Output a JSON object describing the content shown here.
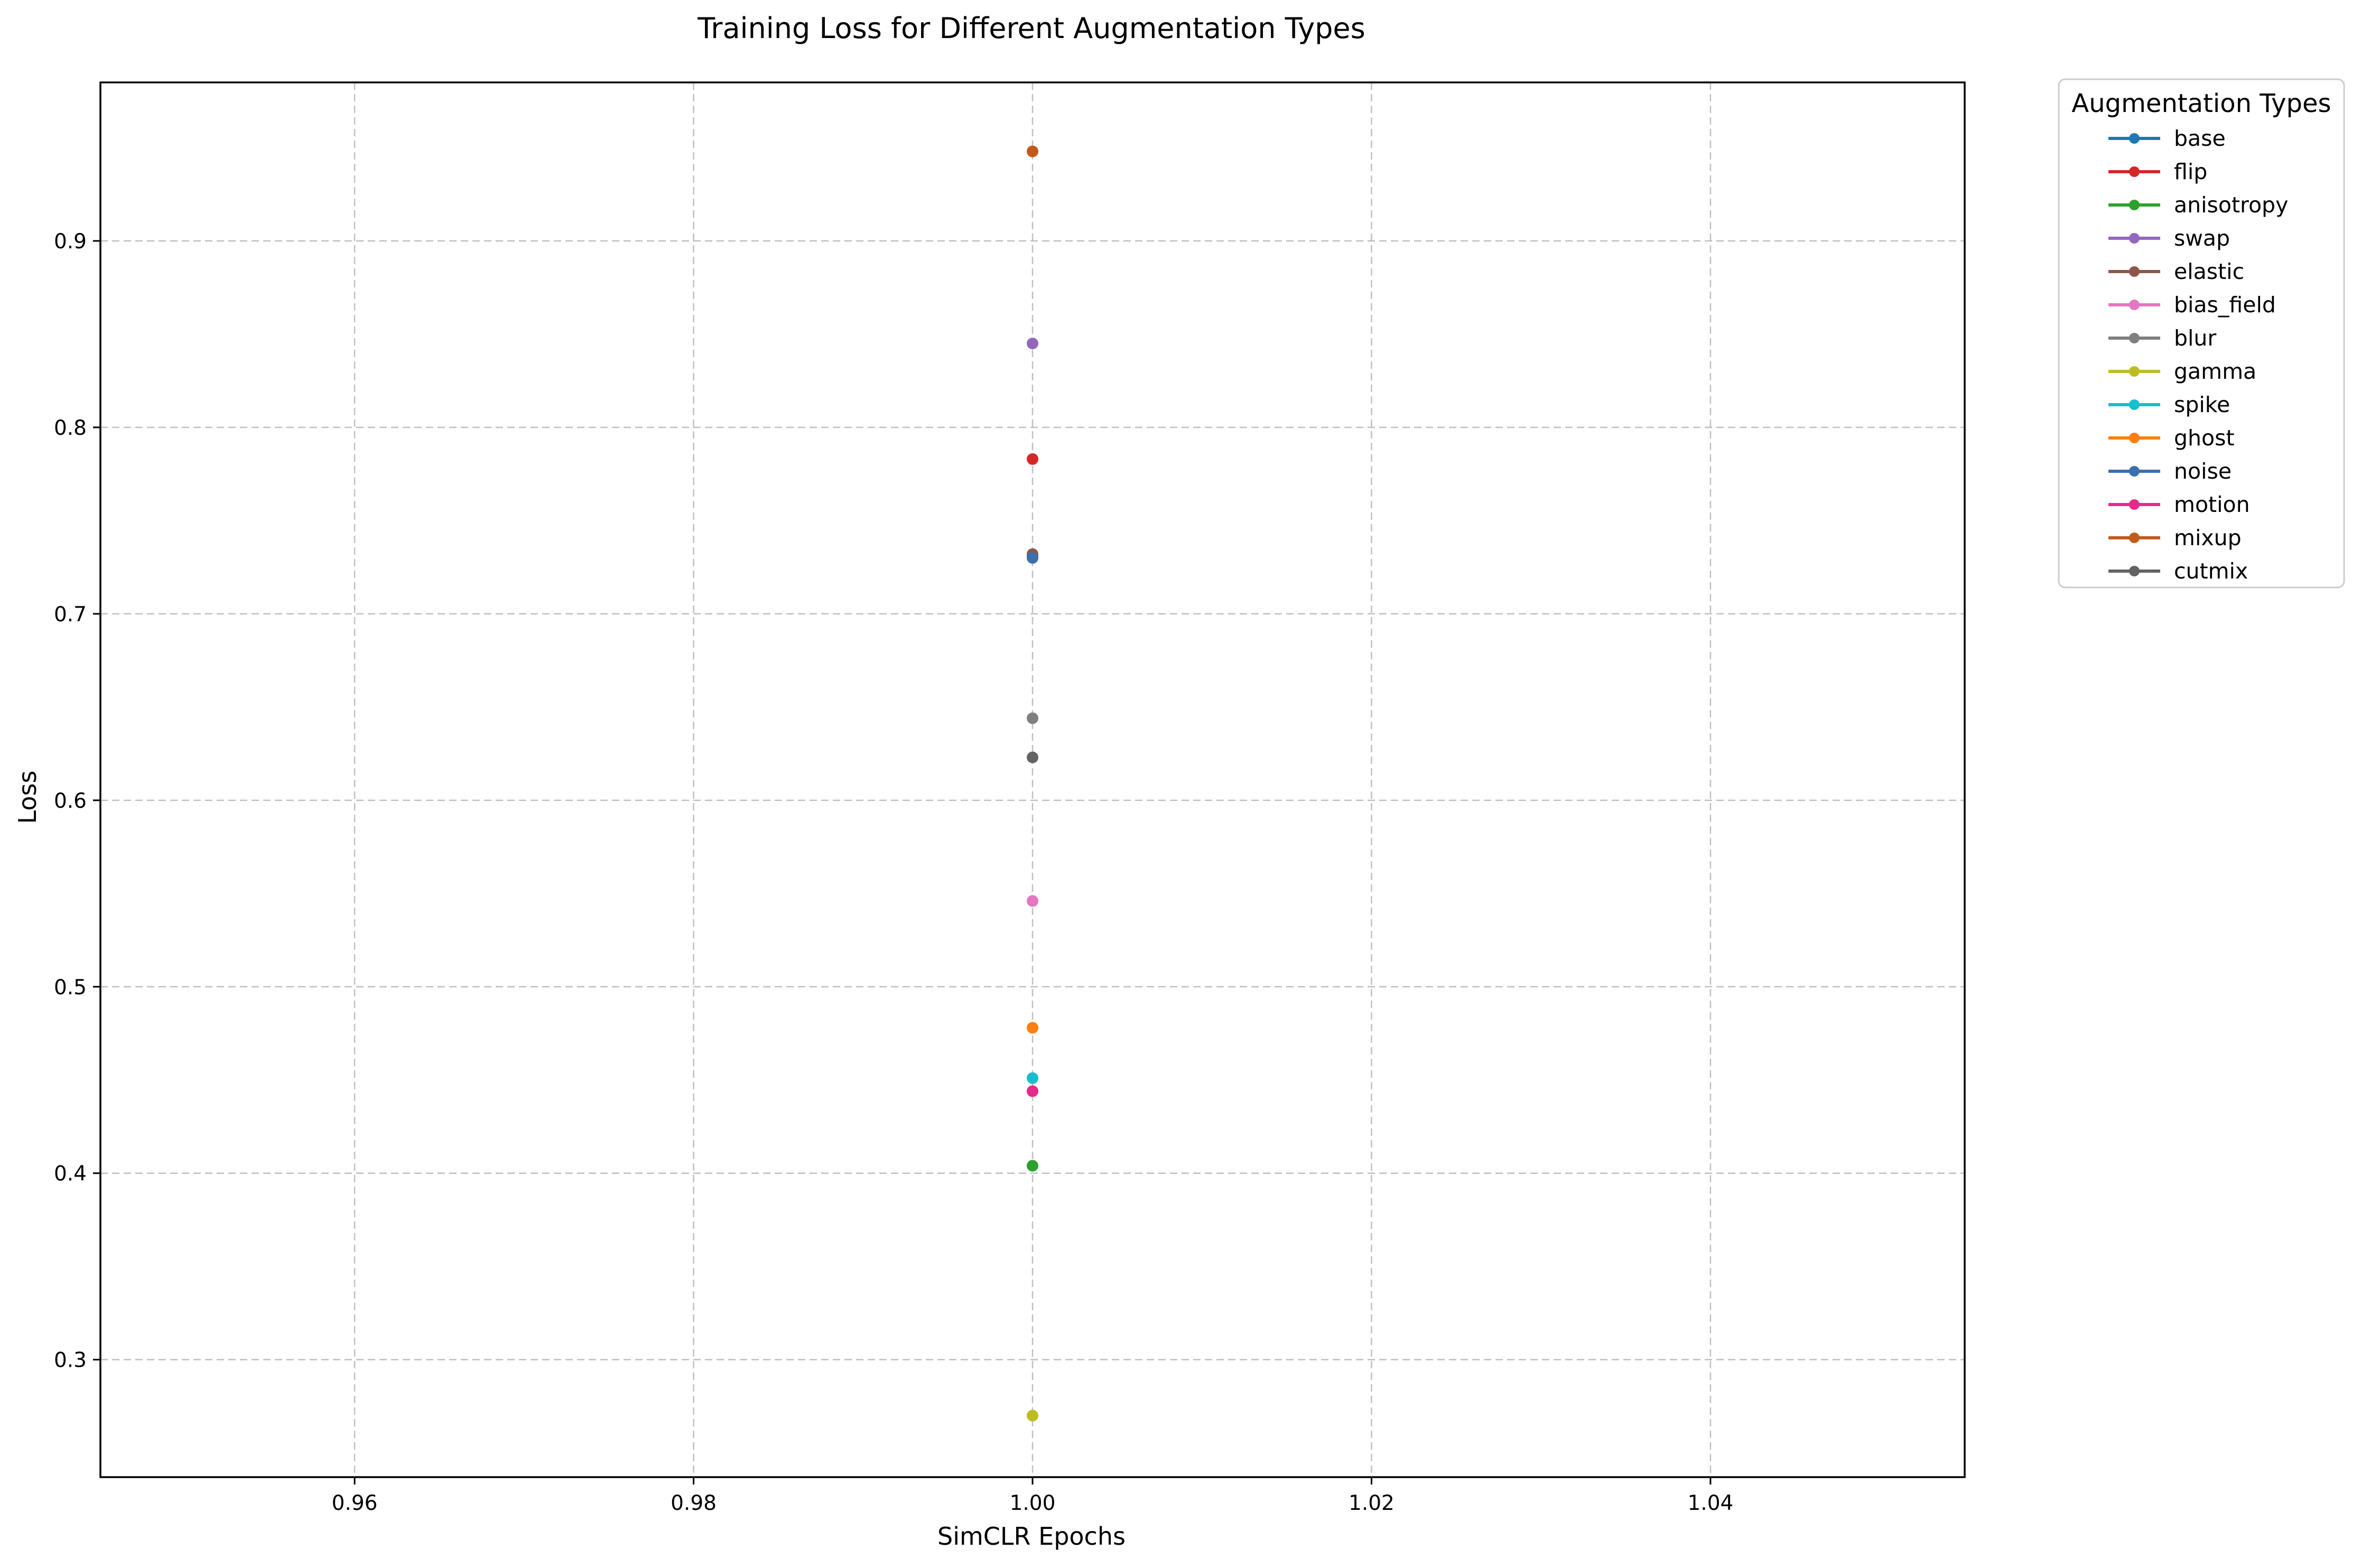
{
  "chart_data": {
    "type": "line",
    "title": "Training Loss for Different Augmentation Types",
    "xlabel": "SimCLR Epochs",
    "ylabel": "Loss",
    "xlim": [
      0.945,
      1.055
    ],
    "ylim": [
      0.237,
      0.985
    ],
    "x_ticks": [
      0.96,
      0.98,
      1.0,
      1.02,
      1.04
    ],
    "x_tick_labels": [
      "0.96",
      "0.98",
      "1.00",
      "1.02",
      "1.04"
    ],
    "y_ticks": [
      0.3,
      0.4,
      0.5,
      0.6,
      0.7,
      0.8,
      0.9
    ],
    "y_tick_labels": [
      "0.3",
      "0.4",
      "0.5",
      "0.6",
      "0.7",
      "0.8",
      "0.9"
    ],
    "grid": true,
    "legend": {
      "title": "Augmentation Types",
      "placement": "outside-right"
    },
    "series": [
      {
        "name": "base",
        "color": "#1f77b4",
        "x": [
          1.0
        ],
        "y": [
          0.731
        ]
      },
      {
        "name": "flip",
        "color": "#d62728",
        "x": [
          1.0
        ],
        "y": [
          0.783
        ]
      },
      {
        "name": "anisotropy",
        "color": "#2ca02c",
        "x": [
          1.0
        ],
        "y": [
          0.404
        ]
      },
      {
        "name": "swap",
        "color": "#9467bd",
        "x": [
          1.0
        ],
        "y": [
          0.845
        ]
      },
      {
        "name": "elastic",
        "color": "#8c564b",
        "x": [
          1.0
        ],
        "y": [
          0.732
        ]
      },
      {
        "name": "bias_field",
        "color": "#e377c2",
        "x": [
          1.0
        ],
        "y": [
          0.546
        ]
      },
      {
        "name": "blur",
        "color": "#7f7f7f",
        "x": [
          1.0
        ],
        "y": [
          0.644
        ]
      },
      {
        "name": "gamma",
        "color": "#bcbd22",
        "x": [
          1.0
        ],
        "y": [
          0.27
        ]
      },
      {
        "name": "spike",
        "color": "#17becf",
        "x": [
          1.0
        ],
        "y": [
          0.451
        ]
      },
      {
        "name": "ghost",
        "color": "#ff7f0e",
        "x": [
          1.0
        ],
        "y": [
          0.478
        ]
      },
      {
        "name": "noise",
        "color": "#3a6fb0",
        "x": [
          1.0
        ],
        "y": [
          0.73
        ]
      },
      {
        "name": "motion",
        "color": "#e7298a",
        "x": [
          1.0
        ],
        "y": [
          0.444
        ]
      },
      {
        "name": "mixup",
        "color": "#c15b1c",
        "x": [
          1.0
        ],
        "y": [
          0.948
        ]
      },
      {
        "name": "cutmix",
        "color": "#636363",
        "x": [
          1.0
        ],
        "y": [
          0.623
        ]
      }
    ]
  }
}
